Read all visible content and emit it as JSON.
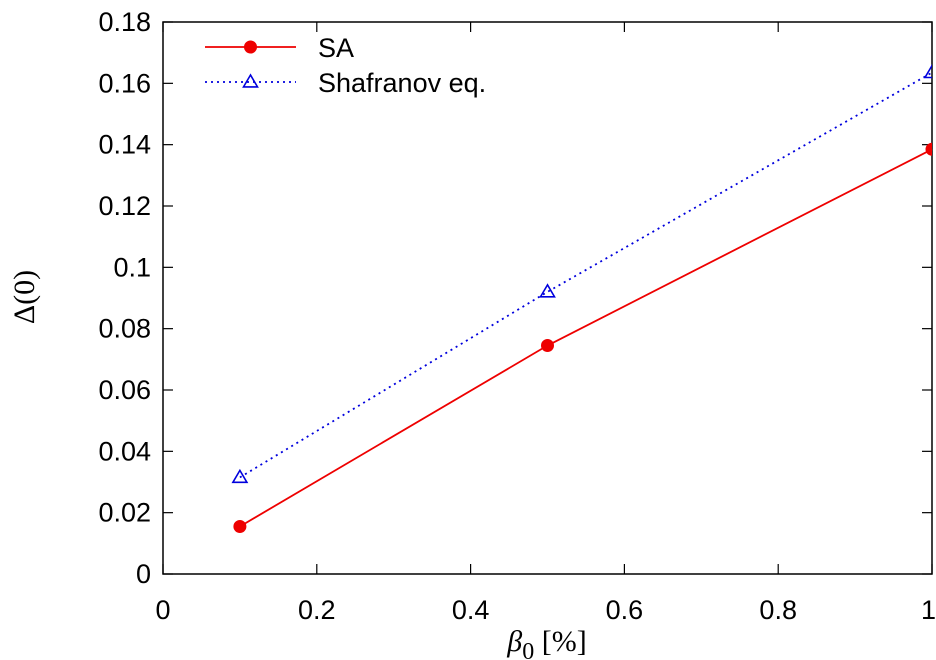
{
  "chart_data": {
    "type": "line",
    "xlabel": "β0 [%]",
    "xlabel_parts": {
      "symbol": "β",
      "subscript": "0",
      "unit": " [%]"
    },
    "ylabel": "Δ(0)",
    "xlim": [
      0,
      1
    ],
    "ylim": [
      0,
      0.18
    ],
    "xticks": [
      0,
      0.2,
      0.4,
      0.6,
      0.8,
      1
    ],
    "xtick_labels": [
      "0",
      "0.2",
      "0.4",
      "0.6",
      "0.8",
      "1"
    ],
    "yticks": [
      0,
      0.02,
      0.04,
      0.06,
      0.08,
      0.1,
      0.12,
      0.14,
      0.16,
      0.18
    ],
    "ytick_labels": [
      "0",
      "0.02",
      "0.04",
      "0.06",
      "0.08",
      "0.1",
      "0.12",
      "0.14",
      "0.16",
      "0.18"
    ],
    "grid": false,
    "legend_position": "top-left",
    "series": [
      {
        "name": "SA",
        "x": [
          0.1,
          0.5,
          1.0
        ],
        "y": [
          0.0155,
          0.0745,
          0.1385
        ],
        "color": "#ee0000",
        "marker": "filled-circle",
        "line": "solid"
      },
      {
        "name": "Shafranov eq.",
        "x": [
          0.1,
          0.5,
          1.0
        ],
        "y": [
          0.0315,
          0.092,
          0.1635
        ],
        "color": "#0000dd",
        "marker": "open-triangle",
        "line": "dotted"
      }
    ]
  }
}
